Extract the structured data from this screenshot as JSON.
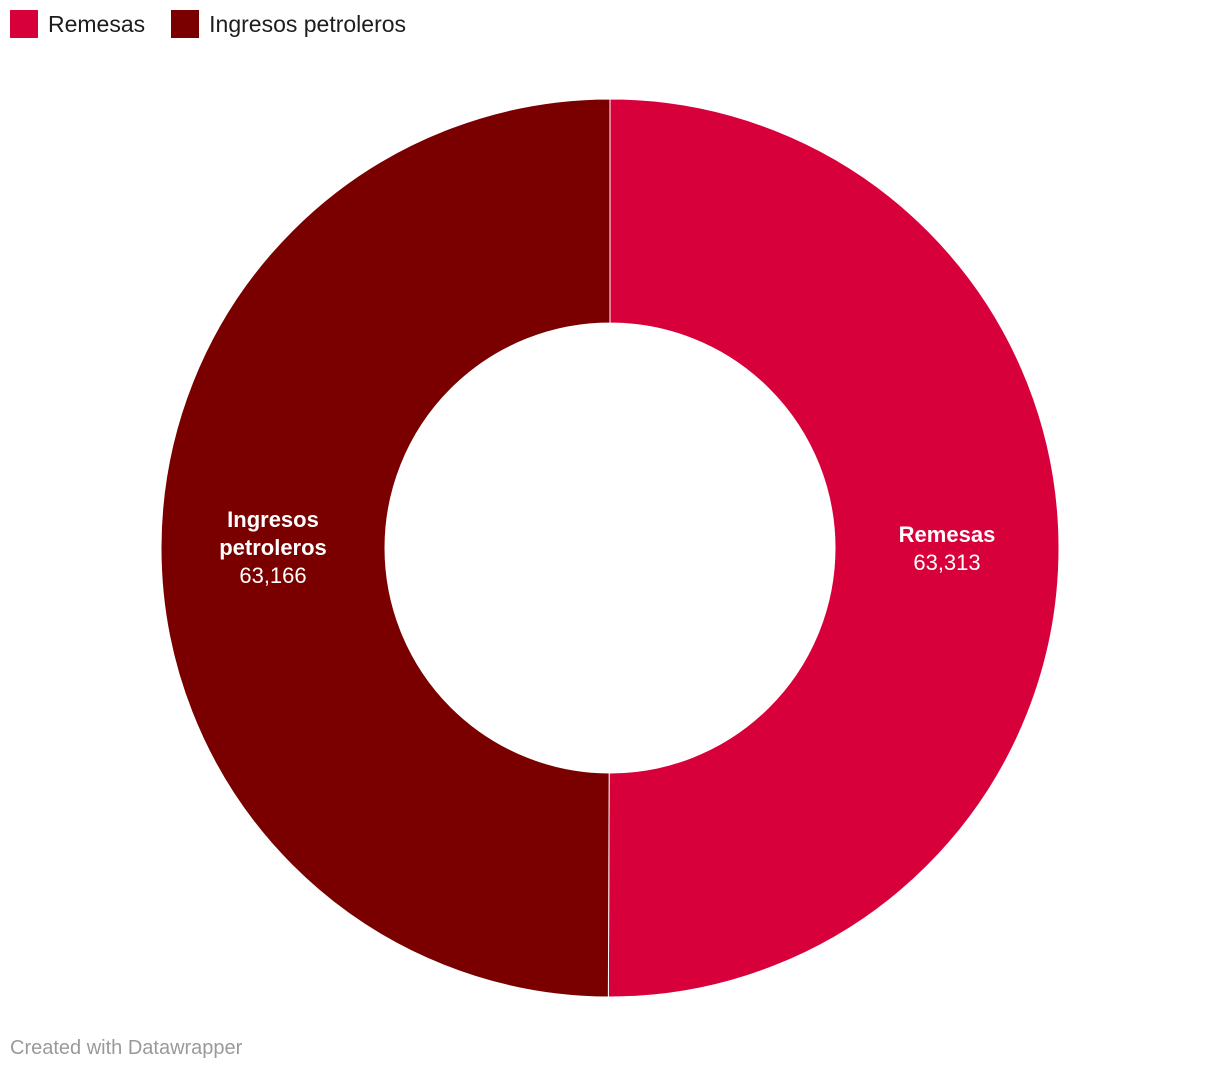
{
  "chart_data": {
    "type": "pie",
    "donut": true,
    "categories": [
      "Remesas",
      "Ingresos petroleros"
    ],
    "label_lines": [
      [
        "Remesas"
      ],
      [
        "Ingresos",
        "petroleros"
      ]
    ],
    "values": [
      63313,
      63166
    ],
    "value_labels": [
      "63,313",
      "63,166"
    ],
    "colors": [
      "#d8003a",
      "#7a0000"
    ],
    "legend": "top-left",
    "start": "top",
    "direction": "clockwise"
  },
  "legend": {
    "items": [
      {
        "label": "Remesas",
        "color": "#d8003a"
      },
      {
        "label": "Ingresos petroleros",
        "color": "#7a0000"
      }
    ]
  },
  "footer": {
    "credit": "Created with Datawrapper"
  }
}
